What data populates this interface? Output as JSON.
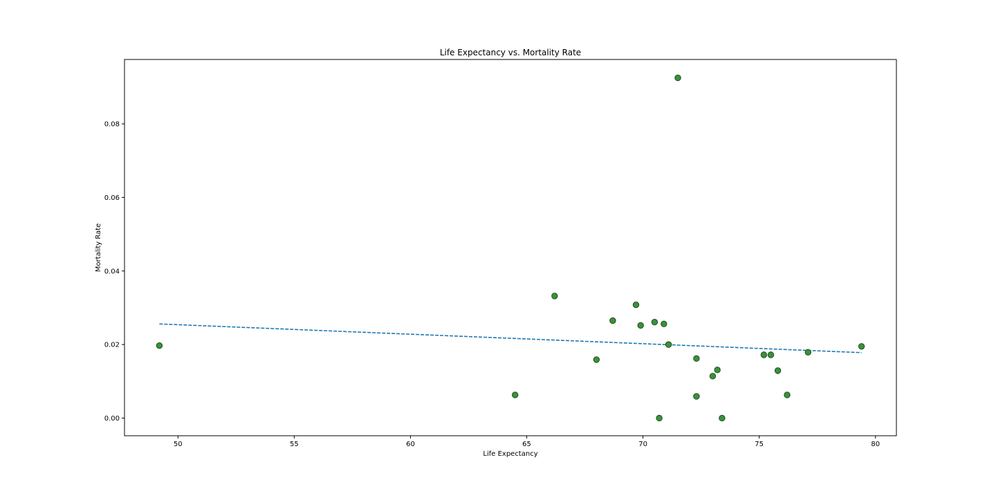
{
  "chart_data": {
    "type": "scatter",
    "title": "Life Expectancy vs. Mortality Rate",
    "xlabel": "Life Expectancy",
    "ylabel": "Mortality Rate",
    "xlim": [
      47.7,
      80.9
    ],
    "ylim": [
      -0.0048,
      0.0975
    ],
    "x_ticks": [
      50,
      55,
      60,
      65,
      70,
      75,
      80
    ],
    "x_tick_labels": [
      "50",
      "55",
      "60",
      "65",
      "70",
      "75",
      "80"
    ],
    "y_ticks": [
      0.0,
      0.02,
      0.04,
      0.06,
      0.08
    ],
    "y_tick_labels": [
      "0.00",
      "0.02",
      "0.04",
      "0.06",
      "0.08"
    ],
    "grid": false,
    "marker_color": "#3a923a",
    "marker_edge_color": "#1e4d1e",
    "trend_color": "#1f77b4",
    "points": [
      {
        "x": 49.2,
        "y": 0.0197
      },
      {
        "x": 64.5,
        "y": 0.0063
      },
      {
        "x": 66.2,
        "y": 0.0332
      },
      {
        "x": 68.0,
        "y": 0.0159
      },
      {
        "x": 68.7,
        "y": 0.0265
      },
      {
        "x": 69.7,
        "y": 0.0308
      },
      {
        "x": 69.9,
        "y": 0.0252
      },
      {
        "x": 70.5,
        "y": 0.0261
      },
      {
        "x": 70.7,
        "y": 0.0
      },
      {
        "x": 70.9,
        "y": 0.0256
      },
      {
        "x": 71.1,
        "y": 0.02
      },
      {
        "x": 71.5,
        "y": 0.0925
      },
      {
        "x": 72.3,
        "y": 0.0162
      },
      {
        "x": 72.3,
        "y": 0.0059
      },
      {
        "x": 73.0,
        "y": 0.0114
      },
      {
        "x": 73.2,
        "y": 0.0131
      },
      {
        "x": 73.4,
        "y": 0.0
      },
      {
        "x": 75.2,
        "y": 0.0172
      },
      {
        "x": 75.5,
        "y": 0.0172
      },
      {
        "x": 75.8,
        "y": 0.0129
      },
      {
        "x": 76.2,
        "y": 0.0063
      },
      {
        "x": 77.1,
        "y": 0.0179
      },
      {
        "x": 79.4,
        "y": 0.0195
      }
    ],
    "trend_line": {
      "x": [
        49.2,
        79.4
      ],
      "y": [
        0.0256,
        0.0178
      ]
    }
  }
}
